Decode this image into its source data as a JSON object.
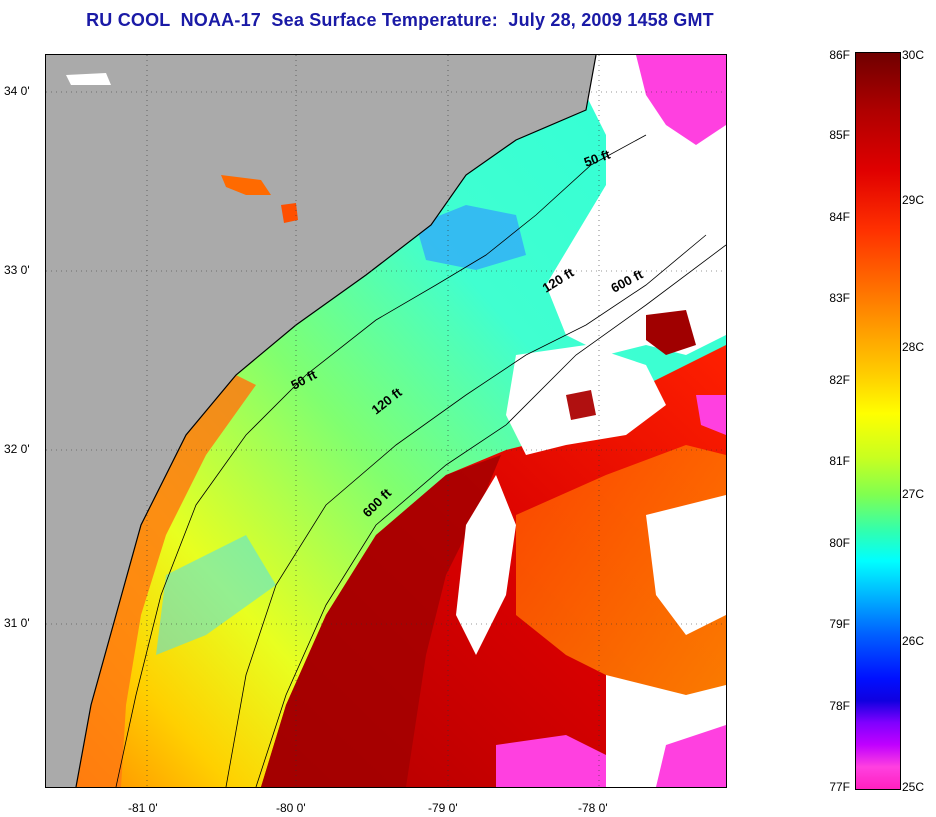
{
  "title": "RU COOL  NOAA-17  Sea Surface Temperature:  July 28, 2009 1458 GMT",
  "map": {
    "lat_labels": [
      {
        "text": "34 0'",
        "lat": 34.0
      },
      {
        "text": "33 0'",
        "lat": 33.0
      },
      {
        "text": "32 0'",
        "lat": 32.0
      },
      {
        "text": "31 0'",
        "lat": 31.0
      }
    ],
    "lon_labels": [
      {
        "text": "-81 0'",
        "lon": -81.0
      },
      {
        "text": "-80 0'",
        "lon": -80.0
      },
      {
        "text": "-79 0'",
        "lon": -79.0
      },
      {
        "text": "-78 0'",
        "lon": -78.0
      }
    ],
    "isobath_labels": [
      "50 ft",
      "120 ft",
      "600 ft",
      "50 ft",
      "120 ft",
      "600 ft"
    ],
    "colors": {
      "land": "#aaaaaa",
      "clouds": "#ffffff",
      "warm": "#a00000",
      "cool": "#00ffff",
      "coldest": "#ff40e0"
    }
  },
  "colorbar": {
    "fahrenheit": [
      "86F",
      "85F",
      "84F",
      "83F",
      "82F",
      "81F",
      "80F",
      "79F",
      "78F",
      "77F"
    ],
    "celsius": [
      "30C",
      "29C",
      "28C",
      "27C",
      "26C",
      "25C"
    ]
  }
}
